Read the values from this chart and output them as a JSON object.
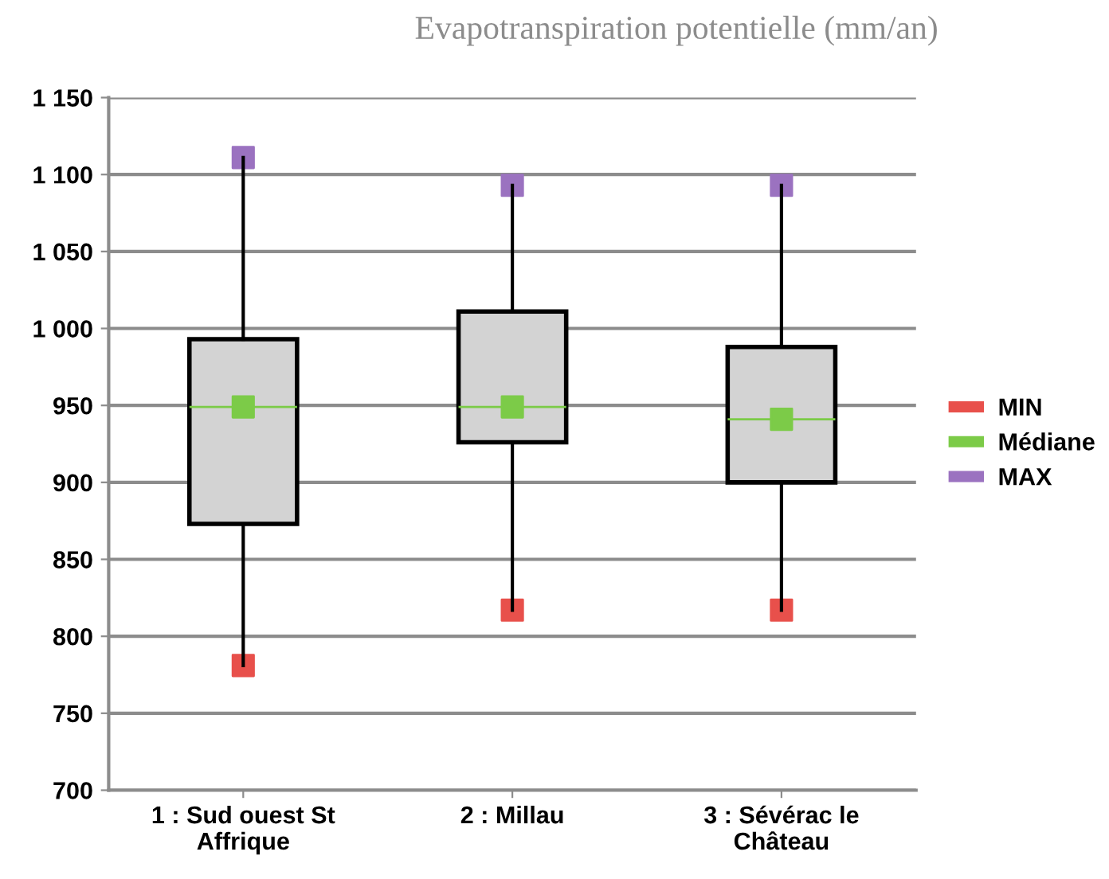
{
  "chart_data": {
    "type": "box",
    "title": "Evapotranspiration potentielle (mm/an)",
    "categories": [
      "1 : Sud ouest St\nAffrique",
      "2 : Millau",
      "3 : Sévérac le\nChâteau"
    ],
    "boxes": [
      {
        "low": 781,
        "q1": 873,
        "median": 949,
        "q3": 993,
        "high": 1111
      },
      {
        "low": 817,
        "q1": 926,
        "median": 949,
        "q3": 1011,
        "high": 1093
      },
      {
        "low": 817,
        "q1": 900,
        "median": 941,
        "q3": 988,
        "high": 1093
      }
    ],
    "series": [
      {
        "name": "MIN",
        "type": "scatter",
        "color": "#e8504b",
        "x": [
          "1 : Sud ouest St\nAffrique",
          "2 : Millau",
          "3 : Sévérac le\nChâteau"
        ],
        "values": [
          781,
          817,
          817
        ]
      },
      {
        "name": "Médiane",
        "type": "scatter",
        "color": "#7ccb48",
        "x": [
          "1 : Sud ouest St\nAffrique",
          "2 : Millau",
          "3 : Sévérac le\nChâteau"
        ],
        "values": [
          949,
          949,
          941
        ]
      },
      {
        "name": "MAX",
        "type": "scatter",
        "color": "#9b72c0",
        "x": [
          "1 : Sud ouest St\nAffrique",
          "2 : Millau",
          "3 : Sévérac le\nChâteau"
        ],
        "values": [
          1111,
          1093,
          1093
        ]
      }
    ],
    "ylim": [
      700,
      1150
    ],
    "yticks": [
      700,
      750,
      800,
      850,
      900,
      950,
      {
        "value": 1000,
        "label": "1 000"
      },
      {
        "value": 1050,
        "label": "1 050"
      },
      {
        "value": 1100,
        "label": "1 100"
      },
      {
        "value": 1150,
        "label": "1 150"
      }
    ],
    "grid": "y",
    "legend": "right",
    "marker": "square"
  }
}
